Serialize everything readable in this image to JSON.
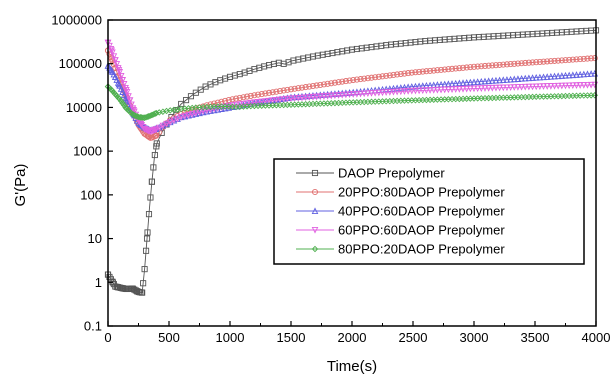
{
  "chart_data": {
    "type": "scatter",
    "title": "",
    "xlabel": "Time(s)",
    "ylabel": "G'(Pa)",
    "xlim": [
      0,
      4000
    ],
    "ylim": [
      0.1,
      1000000
    ],
    "yscale": "log",
    "grid": false,
    "legend_position": "bottom-right",
    "x_ticks": [
      0,
      500,
      1000,
      1500,
      2000,
      2500,
      3000,
      3500,
      4000
    ],
    "x_tick_labels": [
      "0",
      "500",
      "1000",
      "1500",
      "2000",
      "2500",
      "3000",
      "3500",
      "4000"
    ],
    "y_ticks": [
      0.1,
      1,
      10,
      100,
      1000,
      10000,
      100000,
      1000000
    ],
    "y_tick_labels": [
      "0.1",
      "1",
      "10",
      "100",
      "1000",
      "10000",
      "100000",
      "1000000"
    ],
    "series": [
      {
        "name": "DAOP Prepolymer",
        "color": "#555555",
        "marker": "square",
        "points": [
          [
            0,
            1.5
          ],
          [
            30,
            1.1
          ],
          [
            60,
            0.8
          ],
          [
            100,
            0.75
          ],
          [
            150,
            0.7
          ],
          [
            200,
            0.72
          ],
          [
            250,
            0.6
          ],
          [
            280,
            0.58
          ],
          [
            300,
            2
          ],
          [
            320,
            10
          ],
          [
            340,
            50
          ],
          [
            360,
            200
          ],
          [
            380,
            700
          ],
          [
            400,
            1500
          ],
          [
            450,
            3000
          ],
          [
            500,
            5000
          ],
          [
            550,
            8000
          ],
          [
            600,
            12000
          ],
          [
            700,
            20000
          ],
          [
            800,
            30000
          ],
          [
            900,
            40000
          ],
          [
            1000,
            50000
          ],
          [
            1100,
            60000
          ],
          [
            1200,
            75000
          ],
          [
            1300,
            90000
          ],
          [
            1400,
            105000
          ],
          [
            1450,
            98000
          ],
          [
            1500,
            115000
          ],
          [
            1700,
            150000
          ],
          [
            2000,
            210000
          ],
          [
            2300,
            270000
          ],
          [
            2600,
            330000
          ],
          [
            3000,
            400000
          ],
          [
            3500,
            480000
          ],
          [
            4000,
            580000
          ]
        ]
      },
      {
        "name": "20PPO:80DAOP Prepolymer",
        "color": "#e07070",
        "marker": "circle",
        "points": [
          [
            0,
            200000
          ],
          [
            30,
            130000
          ],
          [
            60,
            80000
          ],
          [
            100,
            40000
          ],
          [
            150,
            18000
          ],
          [
            200,
            8000
          ],
          [
            250,
            4000
          ],
          [
            300,
            2500
          ],
          [
            350,
            2000
          ],
          [
            400,
            2300
          ],
          [
            450,
            3500
          ],
          [
            500,
            5000
          ],
          [
            600,
            7000
          ],
          [
            700,
            9000
          ],
          [
            800,
            11000
          ],
          [
            1000,
            15000
          ],
          [
            1200,
            19000
          ],
          [
            1500,
            26000
          ],
          [
            2000,
            42000
          ],
          [
            2500,
            63000
          ],
          [
            3000,
            85000
          ],
          [
            3500,
            108000
          ],
          [
            4000,
            135000
          ]
        ]
      },
      {
        "name": "40PPO:60DAOP Prepolymer",
        "color": "#6060e0",
        "marker": "triangle-up",
        "points": [
          [
            0,
            90000
          ],
          [
            30,
            70000
          ],
          [
            60,
            50000
          ],
          [
            100,
            30000
          ],
          [
            150,
            15000
          ],
          [
            200,
            8000
          ],
          [
            250,
            4500
          ],
          [
            300,
            3500
          ],
          [
            350,
            3000
          ],
          [
            400,
            3300
          ],
          [
            500,
            4500
          ],
          [
            600,
            6000
          ],
          [
            800,
            8000
          ],
          [
            1000,
            10000
          ],
          [
            1200,
            12500
          ],
          [
            1500,
            17000
          ],
          [
            2000,
            22000
          ],
          [
            2500,
            30000
          ],
          [
            3000,
            38000
          ],
          [
            3500,
            48000
          ],
          [
            4000,
            60000
          ]
        ]
      },
      {
        "name": "60PPO:60DAOP Prepolymer",
        "color": "#e060e0",
        "marker": "triangle-down",
        "points": [
          [
            0,
            300000
          ],
          [
            30,
            200000
          ],
          [
            60,
            120000
          ],
          [
            100,
            60000
          ],
          [
            150,
            25000
          ],
          [
            200,
            10000
          ],
          [
            250,
            5000
          ],
          [
            300,
            3200
          ],
          [
            350,
            2800
          ],
          [
            400,
            3200
          ],
          [
            500,
            4500
          ],
          [
            600,
            6000
          ],
          [
            800,
            8500
          ],
          [
            1000,
            11000
          ],
          [
            1200,
            13000
          ],
          [
            1500,
            16000
          ],
          [
            2000,
            20000
          ],
          [
            2500,
            24000
          ],
          [
            3000,
            27000
          ],
          [
            3500,
            30000
          ],
          [
            4000,
            33000
          ]
        ]
      },
      {
        "name": "80PPO:20DAOP Prepolymer",
        "color": "#50b050",
        "marker": "diamond",
        "points": [
          [
            0,
            30000
          ],
          [
            30,
            25000
          ],
          [
            60,
            20000
          ],
          [
            100,
            15000
          ],
          [
            150,
            9500
          ],
          [
            200,
            7000
          ],
          [
            250,
            6000
          ],
          [
            300,
            5800
          ],
          [
            350,
            6500
          ],
          [
            400,
            7500
          ],
          [
            500,
            8500
          ],
          [
            600,
            9200
          ],
          [
            700,
            9800
          ],
          [
            800,
            10200
          ],
          [
            900,
            10500
          ],
          [
            1000,
            10500
          ],
          [
            1050,
            10200
          ],
          [
            1200,
            10800
          ],
          [
            1500,
            11500
          ],
          [
            2000,
            13000
          ],
          [
            2500,
            14500
          ],
          [
            3000,
            16000
          ],
          [
            3500,
            17500
          ],
          [
            4000,
            19000
          ]
        ]
      }
    ]
  }
}
